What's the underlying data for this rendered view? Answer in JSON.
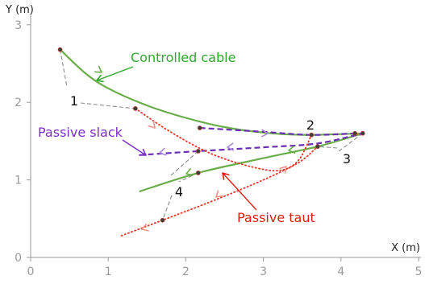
{
  "chart_data": {
    "type": "line",
    "xlabel": "X (m)",
    "ylabel": "Y (m)",
    "xlim": [
      0,
      5
    ],
    "ylim": [
      0,
      3
    ],
    "x_ticks": [
      0,
      1,
      2,
      3,
      4,
      5
    ],
    "y_ticks": [
      0,
      1,
      2,
      3
    ],
    "grid": false,
    "series": [
      {
        "name": "Controlled cable",
        "color": "#6aad4a",
        "style": "solid",
        "x": [
          0.38,
          0.7,
          1.0,
          1.5,
          2.0,
          2.5,
          3.0,
          3.5,
          4.0,
          4.28
        ],
        "y": [
          2.68,
          2.38,
          2.18,
          1.96,
          1.8,
          1.68,
          1.61,
          1.58,
          1.59,
          1.6
        ]
      },
      {
        "name": "Controlled cable",
        "color": "#6aad4a",
        "style": "solid",
        "x": [
          1.4,
          2.16,
          3.0,
          3.7,
          4.28
        ],
        "y": [
          0.85,
          1.09,
          1.28,
          1.43,
          1.6
        ]
      },
      {
        "name": "Passive slack",
        "color": "#6b2fb3",
        "style": "dashed",
        "x": [
          2.18,
          3.0,
          3.62,
          4.18
        ],
        "y": [
          1.67,
          1.62,
          1.58,
          1.6
        ]
      },
      {
        "name": "Passive slack",
        "color": "#6b2fb3",
        "style": "dashed",
        "x": [
          1.4,
          2.16,
          3.0,
          3.7,
          4.28
        ],
        "y": [
          1.32,
          1.37,
          1.42,
          1.47,
          1.6
        ]
      },
      {
        "name": "Passive taut",
        "color": "#e53a2a",
        "style": "dotted",
        "x": [
          1.35,
          1.8,
          2.3,
          2.8,
          3.2,
          3.45,
          3.62
        ],
        "y": [
          1.92,
          1.62,
          1.35,
          1.18,
          1.12,
          1.25,
          1.58
        ]
      },
      {
        "name": "Passive taut",
        "color": "#e53a2a",
        "style": "dotted",
        "x": [
          1.17,
          1.7,
          2.4,
          3.0,
          3.45,
          3.7
        ],
        "y": [
          0.28,
          0.48,
          0.75,
          1.0,
          1.22,
          1.43
        ]
      }
    ],
    "annotations": [
      {
        "text": "Controlled cable",
        "color": "#2fa62f"
      },
      {
        "text": "Passive slack",
        "color": "#7a2fc7"
      },
      {
        "text": "Passive taut",
        "color": "#e01e10"
      },
      {
        "text": "1",
        "color": "#111111"
      },
      {
        "text": "2",
        "color": "#111111"
      },
      {
        "text": "3",
        "color": "#111111"
      },
      {
        "text": "4",
        "color": "#111111"
      }
    ],
    "marked_points": [
      {
        "x": 0.38,
        "y": 2.68
      },
      {
        "x": 1.35,
        "y": 1.92
      },
      {
        "x": 2.18,
        "y": 1.67
      },
      {
        "x": 3.62,
        "y": 1.58
      },
      {
        "x": 4.18,
        "y": 1.6
      },
      {
        "x": 4.28,
        "y": 1.6
      },
      {
        "x": 3.7,
        "y": 1.43
      },
      {
        "x": 2.16,
        "y": 1.37
      },
      {
        "x": 2.16,
        "y": 1.09
      },
      {
        "x": 1.7,
        "y": 0.48
      }
    ],
    "colors": {
      "axis": "#9a9a9a",
      "tick_label": "#9a9a9a",
      "leader": "#8a8a8a",
      "controlled": "#6aad4a",
      "slack": "#6b2fb3",
      "taut": "#e53a2a",
      "arrow_controlled": "#6aad4a",
      "arrow_slack": "#a98ad8",
      "arrow_taut": "#f0948a"
    }
  }
}
